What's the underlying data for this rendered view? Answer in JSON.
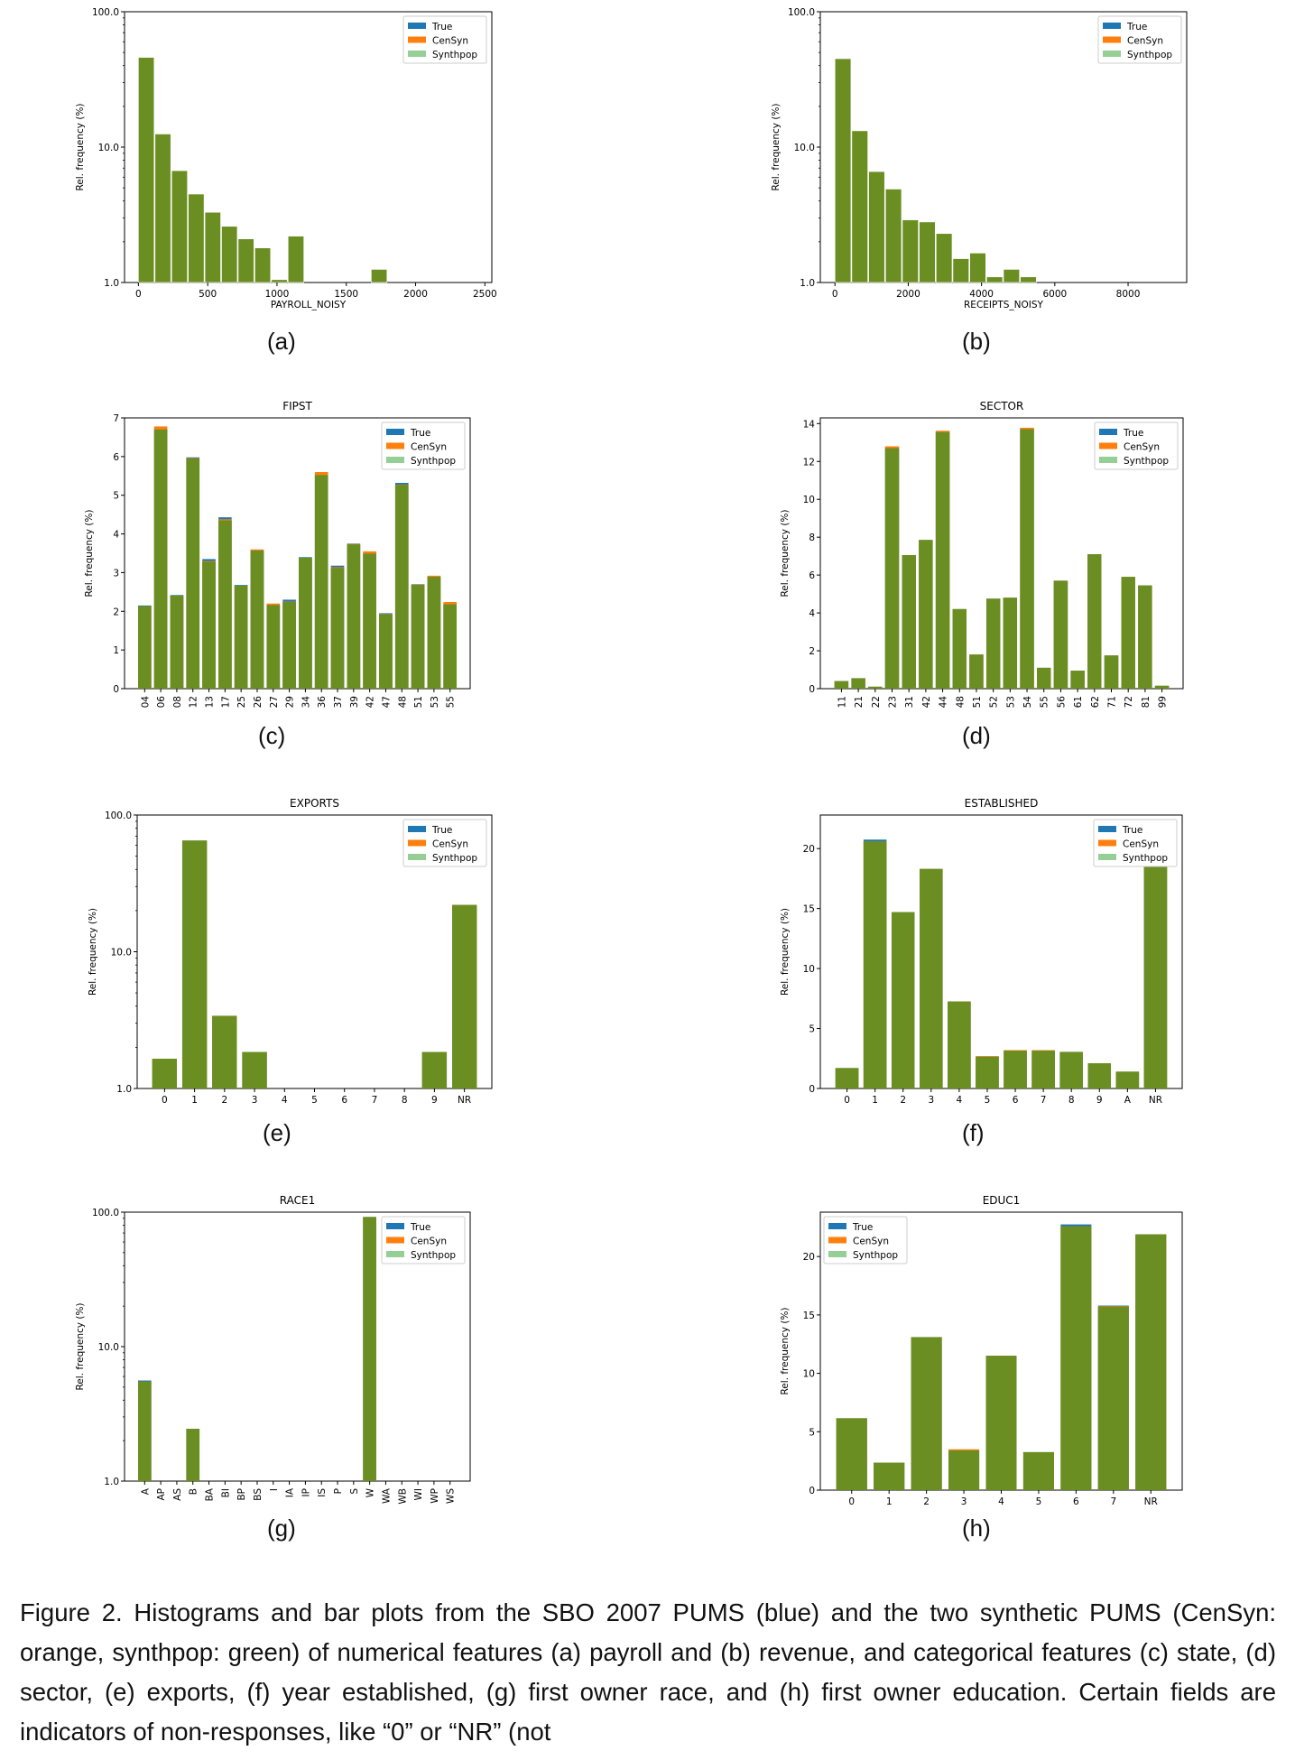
{
  "legend": [
    "True",
    "CenSyn",
    "Synthpop"
  ],
  "colors": {
    "true": "#1f77b4",
    "censyn": "#ff7f0e",
    "synthpop": "#2ca02c",
    "overlap": "#6b8e23",
    "axis": "#000000"
  },
  "caption": "Figure 2. Histograms and bar plots from the SBO 2007 PUMS (blue) and the two synthetic PUMS (CenSyn: orange, synthpop: green) of numerical features (a) payroll and (b) revenue, and categorical features (c) state, (d) sector, (e) exports, (f) year established, (g) first owner race, and (h) first owner education. Certain fields are indicators of non-responses, like “0” or “NR” (not",
  "chart_data": [
    {
      "id": "a",
      "panel_label": "(a)",
      "type": "bar",
      "title": "",
      "xlabel": "PAYROLL_NOISY",
      "ylabel": "Rel. frequency (%)",
      "yscale": "log",
      "ylim": [
        1,
        100
      ],
      "yticks": [
        1,
        10,
        100
      ],
      "ytick_labels": [
        "1.0",
        "10.0",
        "100.0"
      ],
      "xlim": [
        -100,
        2550
      ],
      "xticks": [
        0,
        500,
        1000,
        1500,
        2000,
        2500
      ],
      "xtick_labels": [
        "0",
        "500",
        "1000",
        "1500",
        "2000",
        "2500"
      ],
      "bin_width": 120,
      "bins": [
        0,
        120,
        240,
        360,
        480,
        600,
        720,
        840,
        960,
        1080,
        1200,
        1320,
        1440,
        1560,
        1680,
        1800,
        1920,
        2040,
        2160,
        2280,
        2400
      ],
      "values": [
        46,
        12.5,
        6.7,
        4.5,
        3.3,
        2.6,
        2.1,
        1.8,
        1.05,
        2.2,
        0,
        0,
        0,
        0,
        1.25,
        0,
        0,
        0,
        0,
        0,
        0
      ]
    },
    {
      "id": "b",
      "panel_label": "(b)",
      "type": "bar",
      "title": "",
      "xlabel": "RECEIPTS_NOISY",
      "ylabel": "Rel. frequency (%)",
      "yscale": "log",
      "ylim": [
        1,
        100
      ],
      "yticks": [
        1,
        10,
        100
      ],
      "ytick_labels": [
        "1.0",
        "10.0",
        "100.0"
      ],
      "xlim": [
        -400,
        9600
      ],
      "xticks": [
        0,
        2000,
        4000,
        6000,
        8000
      ],
      "xtick_labels": [
        "0",
        "2000",
        "4000",
        "6000",
        "8000"
      ],
      "bin_width": 460,
      "bins": [
        0,
        460,
        920,
        1380,
        1840,
        2300,
        2760,
        3220,
        3680,
        4140,
        4600,
        5060,
        5520
      ],
      "values": [
        45,
        13.2,
        6.6,
        4.9,
        2.9,
        2.8,
        2.3,
        1.5,
        1.65,
        1.1,
        1.25,
        1.1,
        0
      ]
    },
    {
      "id": "c",
      "panel_label": "(c)",
      "type": "bar",
      "title": "FIPST",
      "xlabel": "",
      "ylabel": "Rel. frequency (%)",
      "yscale": "linear",
      "ylim": [
        0,
        7
      ],
      "yticks": [
        0,
        1,
        2,
        3,
        4,
        5,
        6,
        7
      ],
      "ytick_labels": [
        "0",
        "1",
        "2",
        "3",
        "4",
        "5",
        "6",
        "7"
      ],
      "categories": [
        "04",
        "06",
        "08",
        "12",
        "13",
        "17",
        "25",
        "26",
        "27",
        "29",
        "34",
        "36",
        "37",
        "39",
        "42",
        "47",
        "48",
        "51",
        "53",
        "55"
      ],
      "rotate_labels": true,
      "series": [
        {
          "name": "True",
          "values": [
            2.15,
            6.72,
            2.42,
            5.98,
            3.35,
            4.43,
            2.68,
            3.58,
            2.18,
            2.3,
            3.4,
            5.55,
            3.18,
            3.75,
            3.52,
            1.95,
            5.32,
            2.7,
            2.9,
            2.2
          ]
        },
        {
          "name": "CenSyn",
          "values": [
            2.13,
            6.78,
            2.4,
            5.96,
            3.3,
            4.38,
            2.66,
            3.6,
            2.2,
            2.25,
            3.38,
            5.6,
            3.14,
            3.74,
            3.55,
            1.93,
            5.28,
            2.69,
            2.92,
            2.24
          ]
        },
        {
          "name": "Synthpop",
          "values": [
            2.14,
            6.7,
            2.41,
            5.95,
            3.28,
            4.35,
            2.67,
            3.57,
            2.16,
            2.24,
            3.39,
            5.52,
            3.12,
            3.73,
            3.49,
            1.92,
            5.27,
            2.68,
            2.89,
            2.18
          ]
        }
      ]
    },
    {
      "id": "d",
      "panel_label": "(d)",
      "type": "bar",
      "title": "SECTOR",
      "xlabel": "",
      "ylabel": "Rel. frequency (%)",
      "yscale": "linear",
      "ylim": [
        0,
        14.3
      ],
      "yticks": [
        0,
        2,
        4,
        6,
        8,
        10,
        12,
        14
      ],
      "ytick_labels": [
        "0",
        "2",
        "4",
        "6",
        "8",
        "10",
        "12",
        "14"
      ],
      "categories": [
        "11",
        "21",
        "22",
        "23",
        "31",
        "42",
        "44",
        "48",
        "51",
        "52",
        "53",
        "54",
        "55",
        "56",
        "61",
        "62",
        "71",
        "72",
        "81",
        "99"
      ],
      "rotate_labels": true,
      "series": [
        {
          "name": "True",
          "values": [
            0.4,
            0.55,
            0.1,
            12.75,
            7.05,
            7.85,
            13.6,
            4.2,
            1.8,
            4.75,
            4.8,
            13.75,
            1.1,
            5.7,
            0.95,
            7.1,
            1.75,
            5.9,
            5.45,
            0.15
          ]
        },
        {
          "name": "CenSyn",
          "values": [
            0.4,
            0.55,
            0.1,
            12.8,
            7.05,
            7.85,
            13.62,
            4.2,
            1.8,
            4.75,
            4.8,
            13.78,
            1.1,
            5.7,
            0.95,
            7.1,
            1.75,
            5.9,
            5.45,
            0.15
          ]
        },
        {
          "name": "Synthpop",
          "values": [
            0.4,
            0.55,
            0.1,
            12.7,
            7.05,
            7.85,
            13.55,
            4.2,
            1.8,
            4.75,
            4.8,
            13.7,
            1.1,
            5.7,
            0.95,
            7.1,
            1.75,
            5.9,
            5.45,
            0.15
          ]
        }
      ]
    },
    {
      "id": "e",
      "panel_label": "(e)",
      "type": "bar",
      "title": "EXPORTS",
      "xlabel": "",
      "ylabel": "Rel. frequency (%)",
      "yscale": "log",
      "ylim": [
        1,
        100
      ],
      "yticks": [
        1,
        10,
        100
      ],
      "ytick_labels": [
        "1.0",
        "10.0",
        "100.0"
      ],
      "categories": [
        "0",
        "1",
        "2",
        "3",
        "4",
        "5",
        "6",
        "7",
        "8",
        "9",
        "NR"
      ],
      "rotate_labels": false,
      "series": [
        {
          "name": "True",
          "values": [
            1.65,
            65,
            3.4,
            1.85,
            0,
            0,
            0,
            0,
            0,
            1.85,
            22
          ]
        },
        {
          "name": "CenSyn",
          "values": [
            1.65,
            65,
            3.4,
            1.85,
            0,
            0,
            0,
            0,
            0,
            1.85,
            22
          ]
        },
        {
          "name": "Synthpop",
          "values": [
            1.65,
            65,
            3.4,
            1.85,
            0,
            0,
            0,
            0,
            0,
            1.85,
            22
          ]
        }
      ]
    },
    {
      "id": "f",
      "panel_label": "(f)",
      "type": "bar",
      "title": "ESTABLISHED",
      "xlabel": "",
      "ylabel": "Rel. frequency (%)",
      "yscale": "linear",
      "ylim": [
        0,
        22.8
      ],
      "yticks": [
        0,
        5,
        10,
        15,
        20
      ],
      "ytick_labels": [
        "0",
        "5",
        "10",
        "15",
        "20"
      ],
      "categories": [
        "0",
        "1",
        "2",
        "3",
        "4",
        "5",
        "6",
        "7",
        "8",
        "9",
        "A",
        "NR"
      ],
      "rotate_labels": false,
      "series": [
        {
          "name": "True",
          "values": [
            1.7,
            20.75,
            14.7,
            18.3,
            7.25,
            2.65,
            3.15,
            3.15,
            3.05,
            2.1,
            1.4,
            21.9
          ]
        },
        {
          "name": "CenSyn",
          "values": [
            1.7,
            20.6,
            14.7,
            18.3,
            7.25,
            2.7,
            3.2,
            3.2,
            3.05,
            2.1,
            1.4,
            21.9
          ]
        },
        {
          "name": "Synthpop",
          "values": [
            1.7,
            20.6,
            14.7,
            18.3,
            7.25,
            2.65,
            3.15,
            3.15,
            3.05,
            2.1,
            1.4,
            21.9
          ]
        }
      ]
    },
    {
      "id": "g",
      "panel_label": "(g)",
      "type": "bar",
      "title": "RACE1",
      "xlabel": "",
      "ylabel": "Rel. frequency (%)",
      "yscale": "log",
      "ylim": [
        1,
        100
      ],
      "yticks": [
        1,
        10,
        100
      ],
      "ytick_labels": [
        "1.0",
        "10.0",
        "100.0"
      ],
      "categories": [
        "A",
        "AP",
        "AS",
        "B",
        "BA",
        "BI",
        "BP",
        "BS",
        "I",
        "IA",
        "IP",
        "IS",
        "P",
        "S",
        "W",
        "WA",
        "WB",
        "WI",
        "WP",
        "WS"
      ],
      "rotate_labels": true,
      "series": [
        {
          "name": "True",
          "values": [
            5.6,
            0,
            0,
            2.45,
            0,
            0,
            0,
            0,
            0,
            0,
            0,
            0,
            0,
            0,
            92,
            0,
            0,
            0,
            0,
            0
          ]
        },
        {
          "name": "CenSyn",
          "values": [
            5.5,
            0,
            0,
            2.45,
            0,
            0,
            0,
            0,
            0,
            0,
            0,
            0,
            0,
            0,
            92,
            0,
            0,
            0,
            0,
            0
          ]
        },
        {
          "name": "Synthpop",
          "values": [
            5.5,
            0,
            0,
            2.45,
            0,
            0,
            0,
            0,
            0,
            0,
            0,
            0,
            0,
            0,
            92,
            0,
            0,
            0,
            0,
            0
          ]
        }
      ]
    },
    {
      "id": "h",
      "panel_label": "(h)",
      "type": "bar",
      "title": "EDUC1",
      "xlabel": "",
      "ylabel": "Rel. frequency (%)",
      "yscale": "linear",
      "ylim": [
        0,
        23.8
      ],
      "yticks": [
        0,
        5,
        10,
        15,
        20
      ],
      "ytick_labels": [
        "0",
        "5",
        "10",
        "15",
        "20"
      ],
      "categories": [
        "0",
        "1",
        "2",
        "3",
        "4",
        "5",
        "6",
        "7",
        "NR"
      ],
      "rotate_labels": false,
      "series": [
        {
          "name": "True",
          "values": [
            6.15,
            2.35,
            13.1,
            3.45,
            11.5,
            3.25,
            22.75,
            15.8,
            21.9
          ]
        },
        {
          "name": "CenSyn",
          "values": [
            6.15,
            2.35,
            13.1,
            3.5,
            11.5,
            3.25,
            22.6,
            15.75,
            21.9
          ]
        },
        {
          "name": "Synthpop",
          "values": [
            6.15,
            2.35,
            13.1,
            3.4,
            11.5,
            3.25,
            22.6,
            15.7,
            21.9
          ]
        }
      ]
    }
  ]
}
